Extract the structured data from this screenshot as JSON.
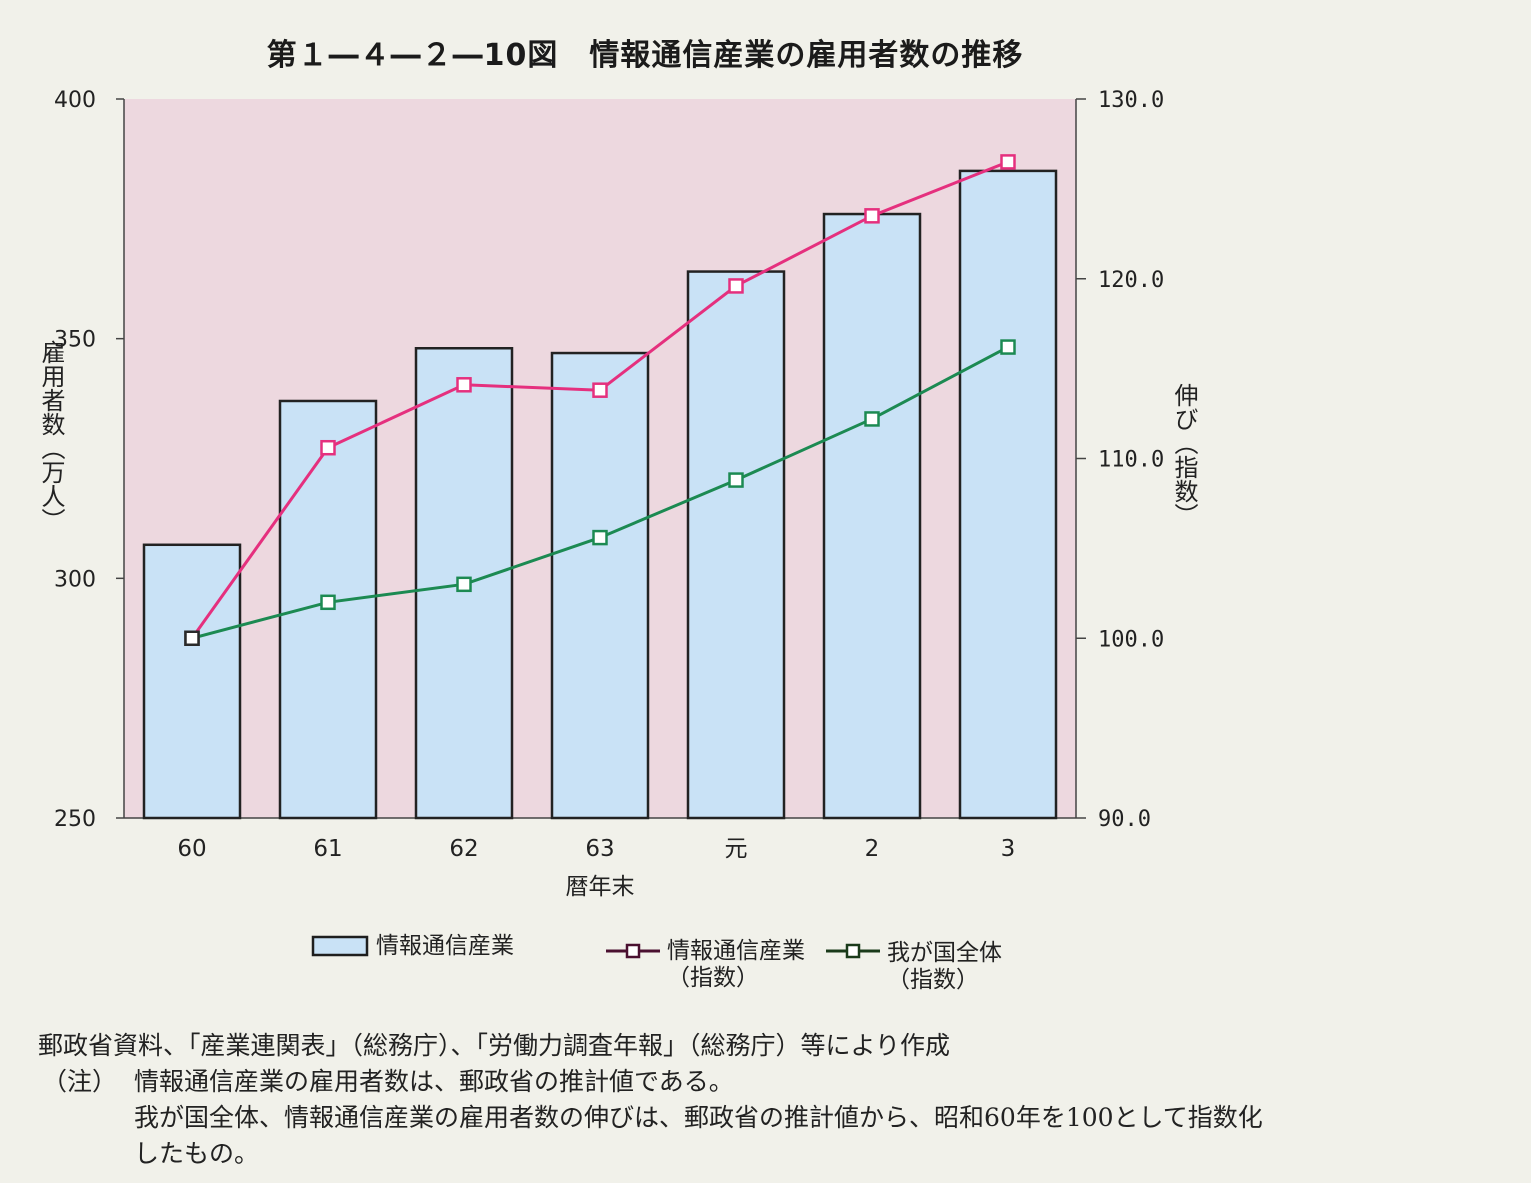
{
  "title": "第１―４―２―10図　情報通信産業の雇用者数の推移",
  "chart_data": {
    "type": "bar+line",
    "categories": [
      "60",
      "61",
      "62",
      "63",
      "元",
      "2",
      "3"
    ],
    "xlabel": "暦年末",
    "ylabel_left": "雇用者数（万人）",
    "ylabel_right": "伸び（指数）",
    "ylim_left": [
      250,
      400
    ],
    "ylim_right": [
      90.0,
      130.0
    ],
    "yticks_left": [
      "250",
      "300",
      "350",
      "400"
    ],
    "yticks_right": [
      "90.0",
      "100.0",
      "110.0",
      "120.0",
      "130.0"
    ],
    "bar_series": {
      "name": "情報通信産業",
      "axis": "left",
      "values": [
        307,
        337,
        348,
        347,
        364,
        376,
        385
      ]
    },
    "line_series": [
      {
        "name": "情報通信産業（指数）",
        "axis": "right",
        "values": [
          100.0,
          110.6,
          114.1,
          113.8,
          119.6,
          123.5,
          126.5
        ]
      },
      {
        "name": "我が国全体（指数）",
        "axis": "right",
        "values": [
          100.0,
          102.0,
          103.0,
          105.6,
          108.8,
          112.2,
          116.2
        ]
      }
    ],
    "colors": {
      "plot_background": "#edd8df",
      "bar_fill": "#c9e2f6",
      "bar_stroke": "#222222",
      "industry_line": "#e5307e",
      "national_line": "#1c8a52"
    }
  },
  "legend": {
    "bar": "情報通信産業",
    "line1": [
      "情報通信産業",
      "（指数）"
    ],
    "line2": [
      "我が国全体",
      "（指数）"
    ]
  },
  "note": {
    "source": "郵政省資料、「産業連関表」（総務庁）、「労働力調査年報」（総務庁）等により作成",
    "label": "（注）",
    "line1": "情報通信産業の雇用者数は、郵政省の推計値である。",
    "line2": "我が国全体、情報通信産業の雇用者数の伸びは、郵政省の推計値から、昭和60年を100として指数化",
    "line3": "したもの。"
  }
}
